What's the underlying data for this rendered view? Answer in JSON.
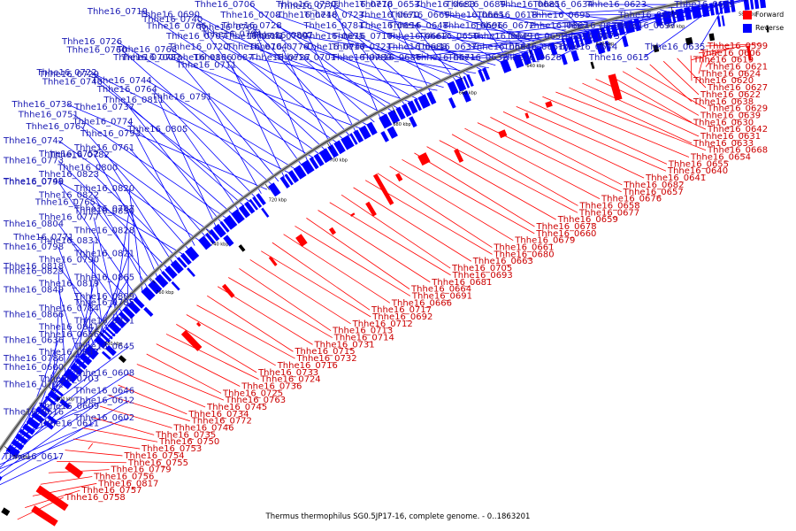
{
  "caption": "Thermus thermophilus SG0.5JP17-16, complete genome. - 0..1863201",
  "legend": [
    {
      "label": "Forward",
      "color": "#ff0000"
    },
    {
      "label": "Reverse",
      "color": "#0000ff"
    }
  ],
  "colors": {
    "forward": "#ff0000",
    "reverse": "#0000ff",
    "backbone": "#888888"
  },
  "ticks": [
    "580 kbp",
    "600 kbp",
    "620 kbp",
    "640 kbp",
    "660 kbp",
    "680 kbp",
    "700 kbp",
    "720 kbp",
    "740 kbp",
    "760 kbp",
    "780 kbp",
    "800 kbp",
    "820 kbp",
    "840 kbp"
  ],
  "reverse_labels": [
    "Thhe16_0699",
    "Thhe16_0698",
    "Thhe16_0674",
    "Thhe16_0652",
    "Thhe16_0635",
    "Thhe16_0615",
    "Thhe16_0634",
    "Thhe16_0618",
    "Thhe16_0697",
    "Thhe16_0673",
    "Thhe16_0651",
    "Thhe16_0632",
    "Thhe16_0623",
    "Thhe16_0695",
    "Thhe16_0672",
    "Thhe16_0650",
    "Thhe16_0644",
    "Thhe16_0628",
    "Thhe16_0689",
    "Thhe16_0669",
    "Thhe16_0667",
    "Thhe16_0649",
    "Thhe16_0637",
    "Thhe16_0686",
    "Thhe16_0685",
    "Thhe16_0665",
    "Thhe16_0648",
    "Thhe16_0710",
    "Thhe16_0684",
    "Thhe16_0671",
    "Thhe16_0653",
    "Thhe16_0723",
    "Thhe16_0696",
    "Thhe16_0662",
    "Thhe16_0721",
    "Thhe16_0701",
    "Thhe16_0683",
    "Thhe16_0670",
    "Thhe16_0781",
    "Thhe16_0709",
    "Thhe16_0688",
    "Thhe16_0780",
    "Thhe16_0730",
    "Thhe16_0708",
    "Thhe16_0694",
    "Thhe16_0675",
    "Thhe16_0776",
    "Thhe16_0687",
    "Thhe16_0770",
    "Thhe16_0748",
    "Thhe16_0728",
    "Thhe16_0707",
    "Thhe16_0747",
    "Thhe16_0727",
    "Thhe16_0706",
    "Thhe16_0690",
    "Thhe16_0775",
    "Thhe16_0741",
    "Thhe16_0720",
    "Thhe16_0700",
    "Thhe16_0807",
    "Thhe16_0769",
    "Thhe16_0740",
    "Thhe16_0719",
    "Thhe16_0704",
    "Thhe16_0806",
    "Thhe16_0768",
    "Thhe16_0726",
    "Thhe16_0794",
    "Thhe16_0766",
    "Thhe16_0744",
    "Thhe16_0722",
    "Thhe16_0711",
    "Thhe16_0783",
    "Thhe16_0760",
    "Thhe16_0738",
    "Thhe16_0791",
    "Thhe16_0764",
    "Thhe16_0743",
    "Thhe16_0729",
    "Thhe16_0805",
    "Thhe16_0774",
    "Thhe16_0751",
    "Thhe16_0737",
    "Thhe16_0811",
    "Thhe16_0782",
    "Thhe16_0761",
    "Thhe16_0742",
    "Thhe16_0793",
    "Thhe16_0767",
    "Thhe16_0749",
    "Thhe16_0823",
    "Thhe16_0800",
    "Thhe16_0773",
    "Thhe16_0752",
    "Thhe16_0787",
    "Thhe16_0765",
    "Thhe16_0822",
    "Thhe16_0820",
    "Thhe16_0795",
    "Thhe16_0771",
    "Thhe16_0828",
    "Thhe16_0804",
    "Thhe16_0777",
    "Thhe16_0850",
    "Thhe16_0818",
    "Thhe16_0790",
    "Thhe16_0821",
    "Thhe16_0798",
    "Thhe16_0831",
    "Thhe16_0809",
    "Thhe16_0849",
    "Thhe16_0819",
    "Thhe16_0865",
    "Thhe16_0829",
    "Thhe16_0841",
    "Thhe16_0851",
    "Thhe16_0866",
    "Thhe16_0784",
    "Thhe16_0785",
    "Thhe16_0786",
    "Thhe16_0647",
    "Thhe16_0645",
    "Thhe16_0636",
    "Thhe16_0656",
    "Thhe16_0646",
    "Thhe16_0702",
    "Thhe16_0703",
    "Thhe16_0608",
    "Thhe16_0600",
    "Thhe16_0611",
    "Thhe16_0602",
    "Thhe16_0616",
    "Thhe16_0609",
    "Thhe16_0612",
    "Thhe16_0617"
  ],
  "forward_labels": [
    "Thhe16_0599",
    "Thhe16_0606",
    "Thhe16_0619",
    "Thhe16_0621",
    "Thhe16_0624",
    "Thhe16_0620",
    "Thhe16_0627",
    "Thhe16_0622",
    "Thhe16_0638",
    "Thhe16_0629",
    "Thhe16_0639",
    "Thhe16_0630",
    "Thhe16_0642",
    "Thhe16_0631",
    "Thhe16_0633",
    "Thhe16_0668",
    "Thhe16_0654",
    "Thhe16_0655",
    "Thhe16_0640",
    "Thhe16_0641",
    "Thhe16_0682",
    "Thhe16_0657",
    "Thhe16_0676",
    "Thhe16_0658",
    "Thhe16_0677",
    "Thhe16_0659",
    "Thhe16_0678",
    "Thhe16_0660",
    "Thhe16_0679",
    "Thhe16_0661",
    "Thhe16_0680",
    "Thhe16_0663",
    "Thhe16_0705",
    "Thhe16_0693",
    "Thhe16_0681",
    "Thhe16_0664",
    "Thhe16_0691",
    "Thhe16_0666",
    "Thhe16_0717",
    "Thhe16_0692",
    "Thhe16_0712",
    "Thhe16_0713",
    "Thhe16_0714",
    "Thhe16_0731",
    "Thhe16_0715",
    "Thhe16_0732",
    "Thhe16_0716",
    "Thhe16_0733",
    "Thhe16_0724",
    "Thhe16_0736",
    "Thhe16_0725",
    "Thhe16_0763",
    "Thhe16_0745",
    "Thhe16_0734",
    "Thhe16_0772",
    "Thhe16_0746",
    "Thhe16_0735",
    "Thhe16_0750",
    "Thhe16_0753",
    "Thhe16_0754",
    "Thhe16_0755",
    "Thhe16_0779",
    "Thhe16_0756",
    "Thhe16_0817",
    "Thhe16_0757",
    "Thhe16_0758"
  ]
}
